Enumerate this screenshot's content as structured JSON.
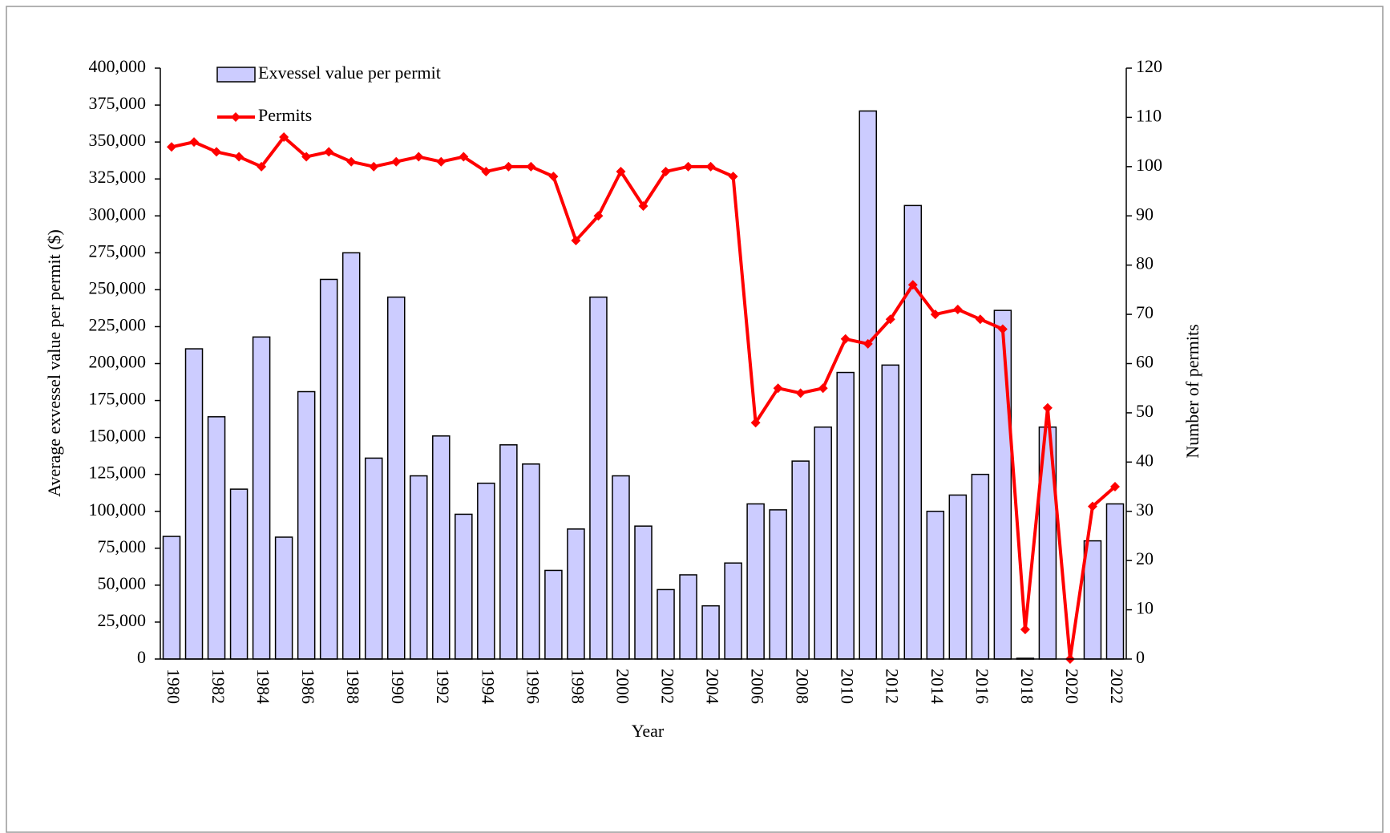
{
  "chart_data": {
    "type": "bar",
    "x_label": "Year",
    "y_label": "Average exvessel value per permit ($)",
    "y2_label": "Number of permits",
    "categories": [
      "1980",
      null,
      "1982",
      null,
      "1984",
      null,
      "1986",
      null,
      "1988",
      null,
      "1990",
      null,
      "1992",
      null,
      "1994",
      null,
      "1996",
      null,
      "1998",
      null,
      "2000",
      null,
      "2002",
      null,
      "2004",
      null,
      "2006",
      null,
      "2008",
      null,
      "2010",
      null,
      "2012",
      null,
      "2014",
      null,
      "2016",
      null,
      "2018",
      null,
      "2020",
      null,
      "2022"
    ],
    "series": [
      {
        "name": "Exvessel value per permit",
        "type": "bar",
        "color": "#ccccff",
        "values": [
          83000,
          210000,
          164000,
          115000,
          218000,
          82500,
          181000,
          257000,
          275000,
          136000,
          245000,
          124000,
          151000,
          98000,
          119000,
          145000,
          132000,
          60000,
          88000,
          245000,
          124000,
          90000,
          47000,
          57000,
          36000,
          65000,
          105000,
          101000,
          134000,
          157000,
          194000,
          371000,
          199000,
          307000,
          100000,
          111000,
          125000,
          236000,
          500,
          157000,
          null,
          80000,
          105000
        ]
      },
      {
        "name": "Permits",
        "type": "line",
        "axis": "y2",
        "color": "#ff0000",
        "values": [
          104,
          105,
          103,
          102,
          100,
          106,
          102,
          103,
          101,
          100,
          101,
          102,
          101,
          102,
          99,
          100,
          100,
          98,
          85,
          90,
          99,
          92,
          99,
          100,
          100,
          98,
          48,
          55,
          54,
          55,
          65,
          64,
          69,
          76,
          70,
          71,
          69,
          67,
          6,
          51,
          0,
          31,
          35
        ]
      }
    ],
    "ylim": [
      0,
      400000
    ],
    "yticks": [
      0,
      {
        "value": 25000,
        "label": "25,000"
      },
      {
        "value": 50000,
        "label": "50,000"
      },
      {
        "value": 75000,
        "label": "75,000"
      },
      {
        "value": 100000,
        "label": "100,000"
      },
      {
        "value": 125000,
        "label": "125,000"
      },
      {
        "value": 150000,
        "label": "150,000"
      },
      {
        "value": 175000,
        "label": "175,000"
      },
      {
        "value": 200000,
        "label": "200,000"
      },
      {
        "value": 225000,
        "label": "225,000"
      },
      {
        "value": 250000,
        "label": "250,000"
      },
      {
        "value": 275000,
        "label": "275,000"
      },
      {
        "value": 300000,
        "label": "300,000"
      },
      {
        "value": 325000,
        "label": "325,000"
      },
      {
        "value": 350000,
        "label": "350,000"
      },
      {
        "value": 375000,
        "label": "375,000"
      },
      {
        "value": 400000,
        "label": "400,000"
      }
    ],
    "y2lim": [
      0,
      120
    ],
    "y2ticks": [
      0,
      10,
      20,
      30,
      40,
      50,
      60,
      70,
      80,
      90,
      100,
      110,
      120
    ],
    "legend": "upper left"
  }
}
